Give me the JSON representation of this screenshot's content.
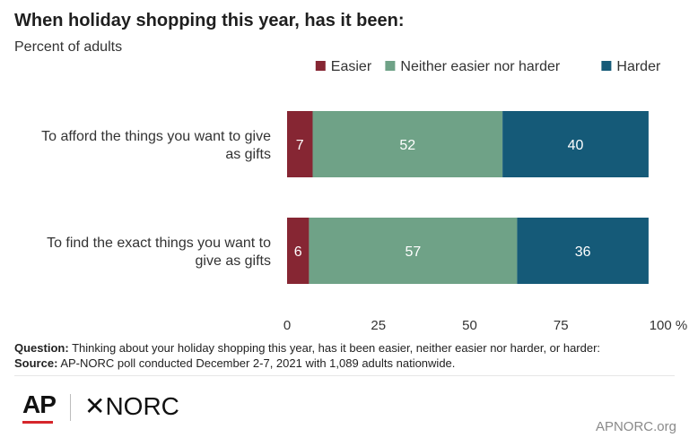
{
  "title": "When holiday shopping this year, has it been:",
  "subtitle": "Percent of adults",
  "chart_data": {
    "type": "bar",
    "orientation": "horizontal",
    "stacked": true,
    "categories": [
      [
        "To afford the things you want to give",
        "as gifts"
      ],
      [
        "To find the exact things you want to",
        "give as gifts"
      ]
    ],
    "series": [
      {
        "name": "Easier",
        "color": "#862633",
        "values": [
          7,
          6
        ]
      },
      {
        "name": "Neither easier nor harder",
        "color": "#6fa287",
        "values": [
          52,
          57
        ]
      },
      {
        "name": "Harder",
        "color": "#155a78",
        "values": [
          40,
          36
        ]
      }
    ],
    "xlim": [
      0,
      100
    ],
    "xticks": [
      "0",
      "25",
      "50",
      "75",
      "100 %"
    ],
    "legend_position": "top-right",
    "grid": false
  },
  "notes": {
    "question_label": "Question:",
    "question_text": "Thinking about your holiday shopping this year, has it been easier, neither easier nor harder, or harder:",
    "source_label": "Source:",
    "source_text": "AP-NORC poll conducted December 2-7, 2021 with 1,089 adults nationwide."
  },
  "footer": {
    "logo_ap": "AP",
    "logo_norc": "✕NORC",
    "site": "APNORC.org"
  }
}
